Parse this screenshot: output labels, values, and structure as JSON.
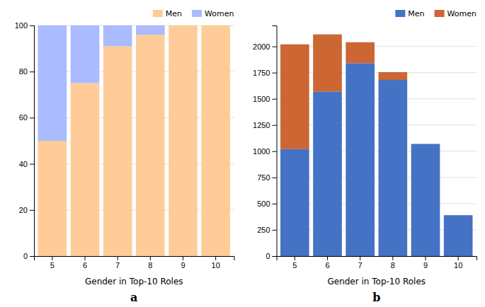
{
  "chart_data": [
    {
      "type": "bar",
      "stacked": true,
      "title": "a",
      "xlabel": "Gender in Top-10 Roles",
      "categories": [
        5,
        6,
        7,
        8,
        9,
        10
      ],
      "series": [
        {
          "name": "Men",
          "color": "#FFCC99",
          "values": [
            50,
            75,
            91,
            96,
            100,
            100
          ]
        },
        {
          "name": "Women",
          "color": "#AABBFF",
          "values": [
            50,
            25,
            9,
            4,
            0,
            0
          ]
        }
      ],
      "ylim": [
        0,
        100
      ],
      "yticks": [
        0,
        20,
        40,
        60,
        80,
        100
      ],
      "grid": true,
      "legend": "upper right"
    },
    {
      "type": "bar",
      "stacked": true,
      "title": "b",
      "xlabel": "Gender in Top-10 Roles",
      "categories": [
        5,
        6,
        7,
        8,
        9,
        10
      ],
      "series": [
        {
          "name": "Men",
          "color": "#4472C4",
          "values": [
            1020,
            1570,
            1840,
            1680,
            1070,
            390
          ]
        },
        {
          "name": "Women",
          "color": "#CC6633",
          "values": [
            1000,
            545,
            200,
            75,
            0,
            0
          ]
        }
      ],
      "ylim": [
        0,
        2200
      ],
      "yticks": [
        0,
        250,
        500,
        750,
        1000,
        1250,
        1500,
        1750,
        2000
      ],
      "grid": true,
      "legend": "upper right"
    }
  ]
}
